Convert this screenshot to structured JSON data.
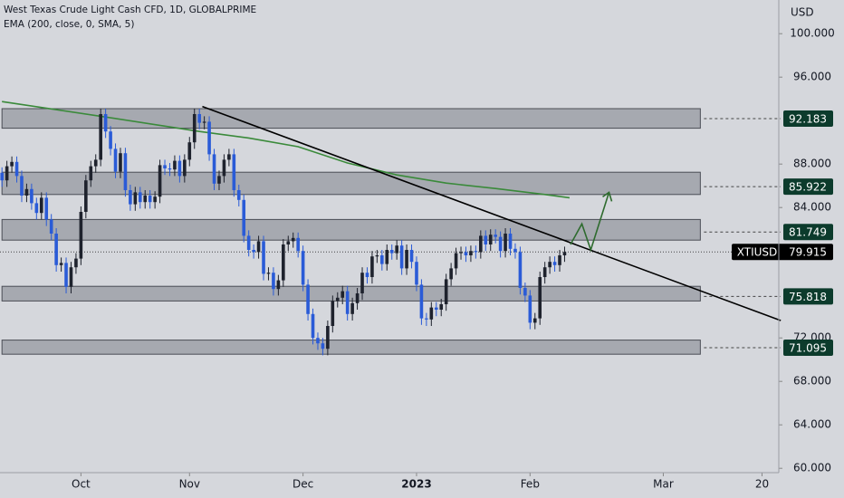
{
  "chart_data": {
    "type": "candlestick",
    "title": "West Texas Crude Light Cash CFD, 1D, GLOBALPRIME",
    "currency": "USD",
    "ylim": [
      59.6,
      103.1
    ],
    "xlim": [
      -0.4,
      157.4
    ],
    "yticks": [
      {
        "value": 100,
        "label": "100.000"
      },
      {
        "value": 96,
        "label": "96.000"
      },
      {
        "value": 88,
        "label": "88.000"
      },
      {
        "value": 84,
        "label": "84.000"
      },
      {
        "value": 72,
        "label": "72.000"
      },
      {
        "value": 68,
        "label": "68.000"
      },
      {
        "value": 64,
        "label": "64.000"
      },
      {
        "value": 60,
        "label": "60.000"
      }
    ],
    "xticks": [
      {
        "value": 16,
        "label": "Oct"
      },
      {
        "value": 38,
        "label": "Nov"
      },
      {
        "value": 61,
        "label": "Dec"
      },
      {
        "value": 84,
        "label": "2023"
      },
      {
        "value": 107,
        "label": "Feb"
      },
      {
        "value": 134,
        "label": "Mar"
      },
      {
        "value": 154,
        "label": "20"
      }
    ],
    "up_color": "#1e222d",
    "down_color": "#2a5bd7",
    "candles": {
      "open": [
        87.2,
        86.5,
        87.8,
        88.2,
        86.9,
        85.1,
        85.7,
        84.4,
        83.5,
        84.9,
        82.9,
        81.6,
        78.7,
        78.9,
        76.7,
        78.5,
        79.3,
        83.6,
        86.5,
        87.8,
        88.4,
        92.6,
        91.0,
        89.4,
        87.3,
        89.0,
        85.6,
        84.3,
        85.4,
        84.5,
        85.1,
        84.5,
        85.0,
        87.9,
        87.6,
        87.5,
        88.3,
        86.9,
        88.4,
        90.0,
        92.6,
        91.8,
        91.9,
        88.9,
        86.2,
        86.9,
        88.4,
        88.9,
        85.6,
        84.7,
        81.4,
        80.1,
        79.9,
        80.9,
        77.9,
        78.0,
        76.5,
        77.3,
        80.6,
        80.9,
        81.2,
        80.0,
        76.9,
        74.2,
        72.0,
        71.5,
        71.0,
        73.1,
        75.4,
        75.7,
        76.3,
        74.2,
        75.2,
        76.1,
        78.0,
        77.6,
        79.5,
        79.6,
        78.8,
        80.1,
        79.8,
        80.5,
        78.4,
        80.1,
        79.0,
        76.9,
        73.8,
        73.7,
        74.8,
        74.6,
        75.1,
        77.4,
        78.4,
        79.8,
        79.9,
        79.6,
        80.0,
        79.9,
        81.4,
        80.6,
        81.5,
        81.3,
        80.0,
        81.6,
        80.2,
        79.9,
        76.6,
        75.9,
        73.4,
        73.8,
        77.6,
        78.5,
        79.0,
        78.7,
        79.6
      ],
      "high": [
        87.7,
        88.3,
        88.7,
        88.7,
        87.4,
        86.2,
        86.2,
        84.9,
        85.4,
        85.4,
        83.4,
        82.1,
        79.4,
        79.4,
        79.0,
        79.8,
        84.1,
        87.0,
        88.3,
        88.9,
        93.1,
        93.1,
        91.5,
        89.9,
        89.5,
        89.5,
        86.1,
        85.9,
        85.9,
        85.6,
        85.6,
        85.5,
        88.4,
        88.4,
        88.1,
        88.8,
        88.8,
        88.9,
        90.5,
        93.1,
        93.1,
        92.4,
        92.4,
        89.4,
        87.4,
        88.9,
        89.4,
        89.4,
        86.1,
        85.2,
        81.9,
        80.6,
        81.4,
        81.4,
        78.5,
        78.5,
        77.8,
        81.1,
        81.4,
        81.7,
        81.7,
        80.5,
        77.4,
        74.7,
        72.5,
        72.0,
        73.6,
        75.9,
        76.2,
        76.8,
        76.8,
        75.7,
        76.6,
        78.5,
        78.5,
        80.0,
        80.1,
        80.1,
        80.6,
        80.6,
        81.0,
        81.0,
        80.6,
        80.6,
        79.5,
        77.4,
        74.3,
        75.3,
        75.3,
        75.6,
        77.9,
        78.9,
        80.3,
        80.4,
        80.4,
        80.5,
        80.5,
        81.9,
        81.9,
        82.0,
        82.0,
        81.8,
        82.1,
        82.1,
        80.7,
        80.4,
        77.1,
        76.4,
        74.3,
        78.1,
        79.0,
        79.5,
        79.5,
        80.1,
        80.4
      ],
      "low": [
        85.9,
        85.9,
        87.2,
        86.3,
        84.5,
        84.5,
        83.8,
        82.9,
        82.9,
        82.3,
        81.0,
        78.1,
        78.1,
        76.1,
        76.1,
        77.9,
        78.7,
        83.0,
        85.9,
        87.2,
        87.8,
        90.4,
        88.8,
        86.7,
        86.7,
        85.0,
        83.7,
        83.7,
        83.9,
        83.9,
        83.9,
        83.9,
        84.4,
        87.0,
        86.9,
        86.9,
        86.3,
        86.3,
        87.8,
        89.4,
        91.2,
        91.2,
        88.3,
        85.6,
        85.6,
        86.3,
        87.8,
        85.0,
        84.1,
        80.8,
        79.5,
        79.3,
        79.3,
        77.3,
        77.3,
        75.9,
        75.9,
        76.7,
        80.0,
        80.3,
        79.4,
        76.3,
        73.6,
        71.4,
        70.9,
        70.4,
        70.4,
        72.5,
        74.8,
        75.1,
        73.6,
        73.6,
        74.6,
        75.5,
        77.0,
        77.0,
        78.9,
        78.2,
        78.2,
        79.2,
        79.2,
        77.8,
        77.8,
        78.4,
        76.3,
        73.2,
        73.1,
        73.1,
        74.0,
        74.0,
        74.5,
        76.8,
        77.8,
        79.2,
        79.0,
        79.0,
        79.3,
        79.3,
        80.0,
        80.0,
        80.7,
        79.4,
        79.4,
        79.6,
        79.3,
        76.0,
        75.3,
        72.8,
        72.8,
        73.2,
        77.0,
        77.9,
        78.1,
        78.1,
        79.0
      ],
      "close": [
        86.5,
        87.8,
        88.2,
        86.9,
        85.1,
        85.7,
        84.4,
        83.5,
        84.9,
        82.9,
        81.6,
        78.7,
        78.9,
        76.7,
        78.5,
        79.3,
        83.6,
        86.5,
        87.8,
        88.4,
        92.6,
        91.0,
        89.4,
        87.3,
        89.0,
        85.6,
        84.3,
        85.4,
        84.5,
        85.1,
        84.5,
        85.0,
        87.9,
        87.6,
        87.5,
        88.3,
        86.9,
        88.4,
        90.0,
        92.6,
        91.8,
        91.9,
        88.9,
        86.2,
        86.9,
        88.4,
        88.9,
        85.6,
        84.7,
        81.4,
        80.1,
        79.9,
        80.9,
        77.9,
        78.0,
        76.5,
        77.3,
        80.6,
        80.9,
        81.2,
        80.0,
        76.9,
        74.2,
        72.0,
        71.5,
        71.0,
        73.1,
        75.4,
        75.7,
        76.3,
        74.2,
        75.2,
        76.1,
        78.0,
        77.6,
        79.5,
        79.6,
        78.8,
        80.1,
        79.8,
        80.5,
        78.4,
        80.1,
        79.0,
        76.9,
        73.8,
        73.7,
        74.8,
        74.6,
        75.1,
        77.4,
        78.4,
        79.8,
        79.9,
        79.6,
        80.0,
        79.9,
        81.4,
        80.6,
        81.5,
        81.3,
        80.0,
        81.6,
        80.2,
        79.9,
        76.6,
        75.9,
        73.4,
        73.8,
        77.6,
        78.5,
        79.0,
        78.7,
        79.6,
        79.9
      ]
    },
    "ema": {
      "name": "EMA (200, close, 0, SMA, 5)",
      "color": "#3a8a3a",
      "x": [
        0,
        20,
        40,
        50,
        60,
        70,
        80,
        90,
        100,
        110,
        115
      ],
      "values": [
        93.75,
        92.4,
        91.0,
        90.4,
        89.6,
        88.1,
        87.0,
        86.25,
        85.75,
        85.2,
        84.9
      ]
    },
    "zones": [
      {
        "x": [
          0,
          141.5
        ],
        "low": 91.3,
        "high": 93.1,
        "level": 92.183
      },
      {
        "x": [
          0,
          141.5
        ],
        "low": 85.2,
        "high": 87.25,
        "level": 85.922
      },
      {
        "x": [
          0,
          141.5
        ],
        "low": 81.0,
        "high": 82.9,
        "level": 81.749
      },
      {
        "x": [
          0,
          141.5
        ],
        "low": 75.4,
        "high": 76.75,
        "level": 75.818
      },
      {
        "x": [
          0,
          141.5
        ],
        "low": 70.5,
        "high": 71.8,
        "level": 71.095
      }
    ],
    "level_color": "#0c3b2c",
    "trendline": {
      "x": [
        40.6,
        157.8
      ],
      "y": [
        93.3,
        73.6
      ],
      "color": "#000000"
    },
    "projection": {
      "x": [
        115.2,
        117.5,
        119.3,
        123
      ],
      "y": [
        80.6,
        82.5,
        80.1,
        85.4
      ],
      "color": "#2e6b2e"
    },
    "last_price": {
      "symbol": "XTIUSD",
      "value": 79.915
    }
  }
}
